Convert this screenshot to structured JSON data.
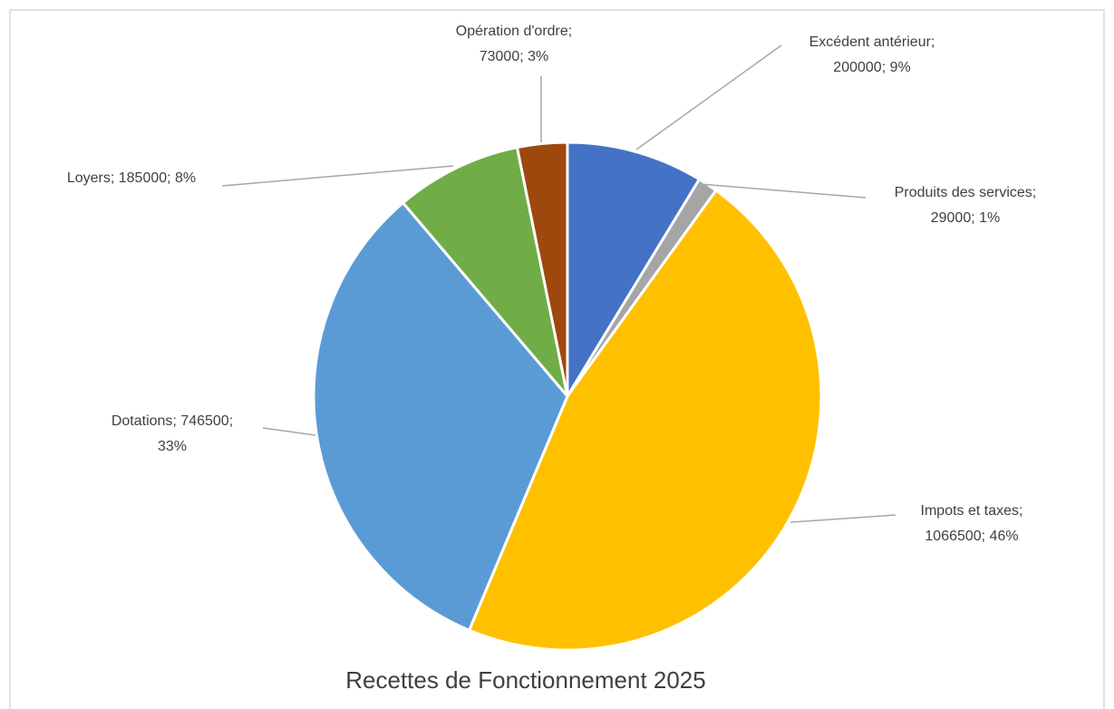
{
  "chart_data": {
    "type": "pie",
    "title": "Recettes de Fonctionnement  2025",
    "values": [
      200000,
      29000,
      1066500,
      746500,
      185000,
      73000
    ],
    "value_labels": [
      [
        "Excédent antérieur;",
        "200000; 9%"
      ],
      [
        "Produits des services;",
        "29000; 1%"
      ],
      [
        "Impots et taxes;",
        "1066500; 46%"
      ],
      [
        "Dotations; 746500;",
        "33%"
      ],
      [
        "Loyers; 185000; 8%"
      ],
      [
        "Opération d'ordre;",
        "73000; 3%"
      ]
    ],
    "colors": [
      "#4472c4",
      "#a5a5a5",
      "#ffc000",
      "#5b9bd5",
      "#70ad47",
      "#9e480e"
    ]
  }
}
